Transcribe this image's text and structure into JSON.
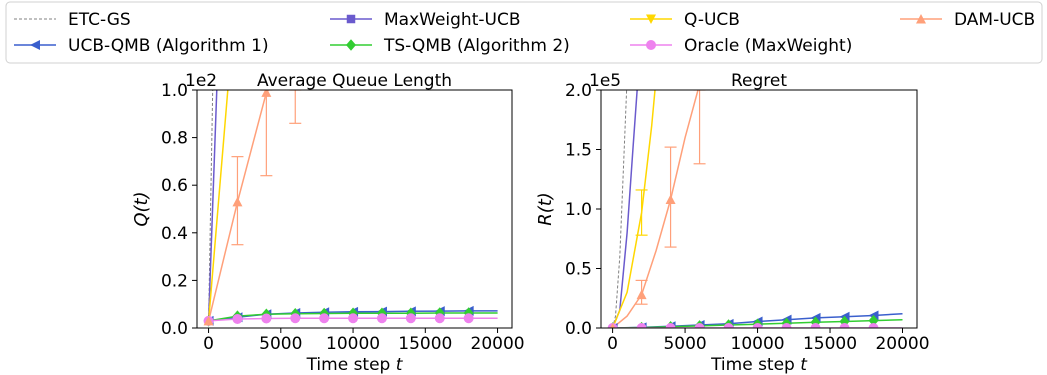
{
  "legend": {
    "placement": "top",
    "entries": [
      {
        "label": "ETC-GS",
        "color": "#808080",
        "marker": "none",
        "dashed": true
      },
      {
        "label": "UCB-QMB (Algorithm 1)",
        "color": "#3a5fcd",
        "marker": "triangle-left",
        "dashed": false
      },
      {
        "label": "MaxWeight-UCB",
        "color": "#6a5acd",
        "marker": "square",
        "dashed": false
      },
      {
        "label": "TS-QMB (Algorithm 2)",
        "color": "#32cd32",
        "marker": "diamond",
        "dashed": false
      },
      {
        "label": "Q-UCB",
        "color": "#ffd700",
        "marker": "triangle-down",
        "dashed": false
      },
      {
        "label": "Oracle (MaxWeight)",
        "color": "#ee82ee",
        "marker": "circle",
        "dashed": false
      },
      {
        "label": "DAM-UCB",
        "color": "#ffa07a",
        "marker": "triangle-up",
        "dashed": false
      }
    ]
  },
  "chart_data": [
    {
      "type": "line",
      "title": "Average Queue Length",
      "xlabel": "Time step t",
      "ylabel": "Q(t)",
      "scale_label": "1e2",
      "xlim": [
        -800,
        21000
      ],
      "ylim": [
        0,
        1.0
      ],
      "xticks": [
        0,
        5000,
        10000,
        15000,
        20000
      ],
      "yticks": [
        0.0,
        0.2,
        0.4,
        0.6,
        0.8,
        1.0
      ],
      "ytick_labels": [
        "0.0",
        "0.2",
        "0.4",
        "0.6",
        "0.8",
        "1.0"
      ],
      "series": [
        {
          "name": "ETC-GS",
          "x": [
            0,
            300
          ],
          "y": [
            0.03,
            1.05
          ]
        },
        {
          "name": "UCB-QMB (Algorithm 1)",
          "x": [
            0,
            2000,
            4000,
            6000,
            8000,
            10000,
            12000,
            14000,
            16000,
            18000,
            20000
          ],
          "y": [
            0.03,
            0.045,
            0.058,
            0.063,
            0.066,
            0.068,
            0.069,
            0.07,
            0.071,
            0.072,
            0.072
          ],
          "markers_at": [
            0,
            2000,
            4000,
            6000,
            8000,
            10000,
            12000,
            14000,
            16000,
            18000
          ]
        },
        {
          "name": "MaxWeight-UCB",
          "x": [
            0,
            600
          ],
          "y": [
            0.03,
            1.05
          ]
        },
        {
          "name": "TS-QMB (Algorithm 2)",
          "x": [
            0,
            2000,
            4000,
            6000,
            8000,
            10000,
            12000,
            14000,
            16000,
            18000,
            20000
          ],
          "y": [
            0.03,
            0.05,
            0.058,
            0.06,
            0.061,
            0.062,
            0.062,
            0.062,
            0.063,
            0.063,
            0.063
          ],
          "markers_at": [
            0,
            2000,
            4000,
            6000,
            8000,
            10000,
            12000,
            14000,
            16000,
            18000
          ]
        },
        {
          "name": "Q-UCB",
          "x": [
            0,
            1400
          ],
          "y": [
            0.03,
            1.05
          ]
        },
        {
          "name": "Oracle (MaxWeight)",
          "x": [
            0,
            2000,
            4000,
            6000,
            8000,
            10000,
            12000,
            14000,
            16000,
            18000,
            20000
          ],
          "y": [
            0.03,
            0.038,
            0.04,
            0.041,
            0.041,
            0.041,
            0.041,
            0.041,
            0.041,
            0.041,
            0.041
          ],
          "markers_at": [
            0,
            2000,
            4000,
            6000,
            8000,
            10000,
            12000,
            14000,
            16000,
            18000
          ]
        },
        {
          "name": "DAM-UCB",
          "x": [
            0,
            2000,
            4000,
            4800
          ],
          "y": [
            0.03,
            0.53,
            0.99,
            1.05
          ],
          "markers_at": [
            0,
            2000,
            4000
          ]
        }
      ],
      "errorbars": [
        {
          "series": "DAM-UCB",
          "x": 2000,
          "low": 0.35,
          "high": 0.72
        },
        {
          "series": "DAM-UCB",
          "x": 4000,
          "low": 0.64,
          "high": 1.0
        },
        {
          "series": "DAM-UCB",
          "x": 6000,
          "low": 0.86,
          "high": 1.0
        }
      ]
    },
    {
      "type": "line",
      "title": "Regret",
      "xlabel": "Time step t",
      "ylabel": "R(t)",
      "scale_label": "1e5",
      "xlim": [
        -800,
        21000
      ],
      "ylim": [
        0,
        2.0
      ],
      "xticks": [
        0,
        5000,
        10000,
        15000,
        20000
      ],
      "yticks": [
        0.0,
        0.5,
        1.0,
        1.5,
        2.0
      ],
      "ytick_labels": [
        "0.0",
        "0.5",
        "1.0",
        "1.5",
        "2.0"
      ],
      "series": [
        {
          "name": "ETC-GS",
          "x": [
            0,
            200,
            500,
            800,
            1000
          ],
          "y": [
            0,
            0.1,
            0.6,
            1.5,
            2.1
          ]
        },
        {
          "name": "UCB-QMB (Algorithm 1)",
          "x": [
            0,
            2000,
            4000,
            6000,
            8000,
            10000,
            12000,
            14000,
            16000,
            18000,
            20000
          ],
          "y": [
            0,
            0.005,
            0.015,
            0.025,
            0.035,
            0.055,
            0.07,
            0.085,
            0.095,
            0.105,
            0.12
          ],
          "markers_at": [
            0,
            2000,
            4000,
            6000,
            8000,
            10000,
            12000,
            14000,
            16000,
            18000
          ]
        },
        {
          "name": "MaxWeight-UCB",
          "x": [
            0,
            500,
            1000,
            1400,
            1750
          ],
          "y": [
            0,
            0.15,
            0.8,
            1.5,
            2.1
          ]
        },
        {
          "name": "TS-QMB (Algorithm 2)",
          "x": [
            0,
            2000,
            4000,
            6000,
            8000,
            10000,
            12000,
            14000,
            16000,
            18000,
            20000
          ],
          "y": [
            0,
            0.003,
            0.01,
            0.018,
            0.025,
            0.032,
            0.04,
            0.048,
            0.055,
            0.062,
            0.07
          ],
          "markers_at": [
            0,
            2000,
            4000,
            6000,
            8000,
            10000,
            12000,
            14000,
            16000,
            18000
          ]
        },
        {
          "name": "Q-UCB",
          "x": [
            0,
            1000,
            2000,
            2700,
            3000
          ],
          "y": [
            0,
            0.3,
            0.97,
            1.7,
            2.1
          ]
        },
        {
          "name": "Oracle (MaxWeight)",
          "x": [
            0,
            2000,
            4000,
            6000,
            8000,
            10000,
            12000,
            14000,
            16000,
            18000,
            20000
          ],
          "y": [
            0,
            0,
            0,
            0,
            0,
            0,
            0,
            0,
            0,
            0,
            0
          ],
          "markers_at": [
            0,
            2000,
            4000,
            6000,
            8000,
            10000,
            12000,
            14000,
            16000,
            18000
          ]
        },
        {
          "name": "DAM-UCB",
          "x": [
            0,
            1000,
            2000,
            3000,
            4000,
            5000,
            6000,
            6300
          ],
          "y": [
            0,
            0.1,
            0.28,
            0.65,
            1.08,
            1.6,
            2.05,
            2.15
          ],
          "markers_at": [
            0,
            2000,
            4000
          ]
        }
      ],
      "errorbars": [
        {
          "series": "Q-UCB",
          "x": 2000,
          "low": 0.78,
          "high": 1.16
        },
        {
          "series": "DAM-UCB",
          "x": 2000,
          "low": 0.2,
          "high": 0.4
        },
        {
          "series": "DAM-UCB",
          "x": 4000,
          "low": 0.68,
          "high": 1.52
        },
        {
          "series": "DAM-UCB",
          "x": 6000,
          "low": 1.38,
          "high": 2.0
        }
      ]
    }
  ]
}
